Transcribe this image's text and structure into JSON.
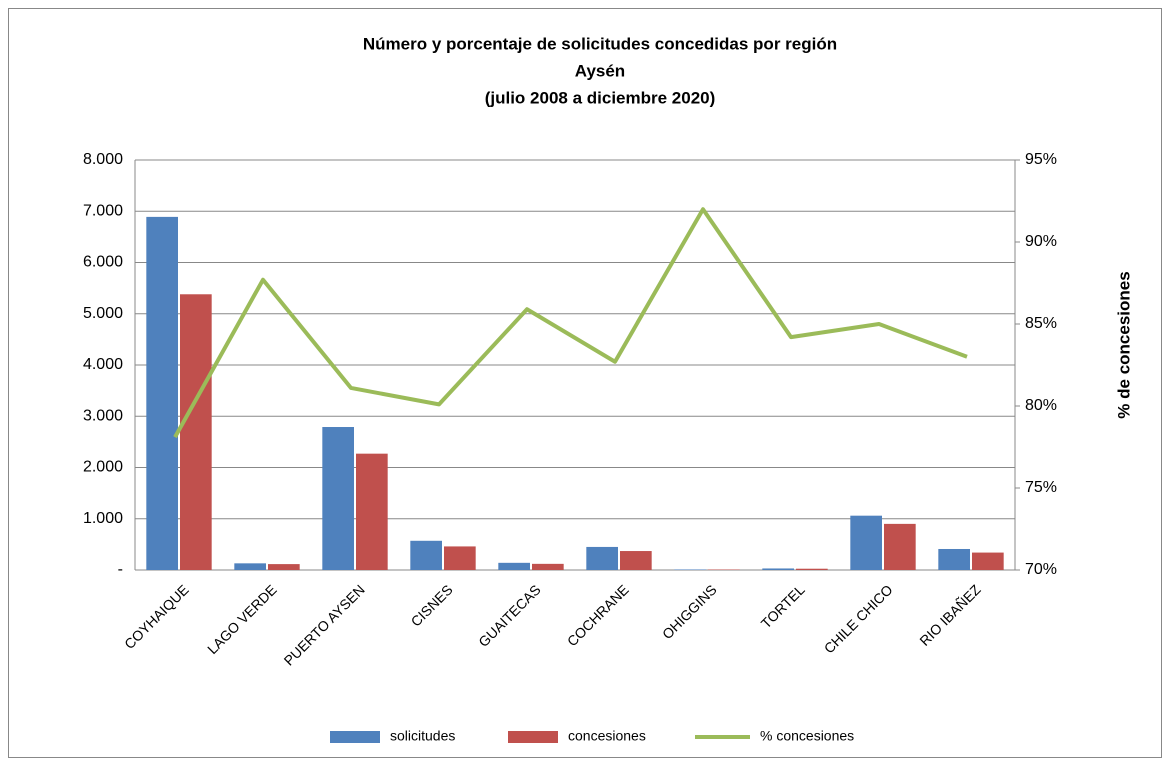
{
  "chart_data": {
    "type": "bar-line",
    "title": [
      "Número y porcentaje de solicitudes concedidas por región",
      "Aysén",
      "(julio 2008 a diciembre 2020)"
    ],
    "y2label": "% de concesiones",
    "categories": [
      "COYHAIQUE",
      "LAGO VERDE",
      "PUERTO AYSEN",
      "CISNES",
      "GUAITECAS",
      "COCHRANE",
      "OHIGGINS",
      "TORTEL",
      "CHILE CHICO",
      "RIO IBAÑEZ"
    ],
    "series": [
      {
        "name": "solicitudes",
        "color": "#4f81bd",
        "type": "bar",
        "values": [
          6890,
          130,
          2790,
          570,
          140,
          450,
          10,
          30,
          1060,
          410
        ]
      },
      {
        "name": "concesiones",
        "color": "#c0504d",
        "type": "bar",
        "values": [
          5380,
          115,
          2270,
          460,
          120,
          370,
          9,
          25,
          900,
          340
        ]
      },
      {
        "name": "% concesiones",
        "color": "#9bbb59",
        "type": "line",
        "axis": "y2",
        "values": [
          78.1,
          87.7,
          81.1,
          80.1,
          85.9,
          82.7,
          92.0,
          84.2,
          85.0,
          83.0
        ]
      }
    ],
    "ylim": [
      0,
      8000
    ],
    "yticks": [
      {
        "value": 0,
        "label": "-"
      },
      {
        "value": 1000,
        "label": "1.000"
      },
      {
        "value": 2000,
        "label": "2.000"
      },
      {
        "value": 3000,
        "label": "3.000"
      },
      {
        "value": 4000,
        "label": "4.000"
      },
      {
        "value": 5000,
        "label": "5.000"
      },
      {
        "value": 6000,
        "label": "6.000"
      },
      {
        "value": 7000,
        "label": "7.000"
      },
      {
        "value": 8000,
        "label": "8.000"
      }
    ],
    "y2lim": [
      70,
      95
    ],
    "y2ticks": [
      {
        "value": 70,
        "label": "70%"
      },
      {
        "value": 75,
        "label": "75%"
      },
      {
        "value": 80,
        "label": "80%"
      },
      {
        "value": 85,
        "label": "85%"
      },
      {
        "value": 90,
        "label": "90%"
      },
      {
        "value": 95,
        "label": "95%"
      }
    ],
    "grid": true,
    "legend": "bottom"
  }
}
